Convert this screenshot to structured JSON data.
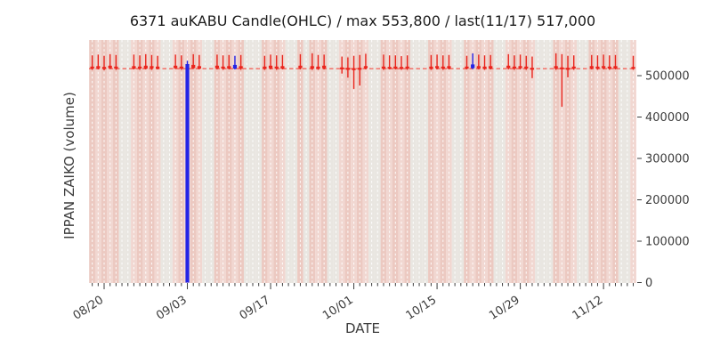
{
  "title": "6371 auKABU Candle(OHLC) / max 553,800 / last(11/17) 517,000",
  "chart_data": {
    "type": "candlestick-ohlc",
    "title": "6371 auKABU Candle(OHLC) / max 553,800 / last(11/17) 517,000",
    "xlabel": "DATE",
    "ylabel": "IPPAN ZAIKO (volume)",
    "ylim": [
      0,
      560000
    ],
    "y_ticks": [
      0,
      100000,
      200000,
      300000,
      400000,
      500000
    ],
    "x_major_ticks": [
      "08/20",
      "09/03",
      "09/17",
      "10/01",
      "10/15",
      "10/29",
      "11/12"
    ],
    "date_range": [
      "08/17",
      "11/18"
    ],
    "max_value": 553800,
    "last_date": "11/17",
    "last_value": 517000,
    "reference_line": 517000,
    "grid": "white dashed vertical line per day",
    "legend_position": "none",
    "non_trading_days": [
      "09/15",
      "09/23",
      "10/13",
      "11/03"
    ],
    "candle_fields": [
      "date",
      "open",
      "high",
      "low",
      "close",
      "color"
    ],
    "candles": [
      [
        "08/18",
        522000,
        549000,
        514000,
        517000,
        "r"
      ],
      [
        "08/19",
        523000,
        551000,
        515000,
        518000,
        "r"
      ],
      [
        "08/20",
        521000,
        548000,
        513000,
        517000,
        "r"
      ],
      [
        "08/21",
        524000,
        552000,
        516000,
        518000,
        "r"
      ],
      [
        "08/22",
        522000,
        550000,
        514000,
        517000,
        "r"
      ],
      [
        "08/25",
        523000,
        551000,
        515000,
        517000,
        "r"
      ],
      [
        "08/26",
        522000,
        549000,
        514000,
        518000,
        "r"
      ],
      [
        "08/27",
        524000,
        552000,
        515000,
        517000,
        "r"
      ],
      [
        "08/28",
        523000,
        550000,
        514000,
        518000,
        "r"
      ],
      [
        "08/29",
        522000,
        548000,
        515000,
        517000,
        "r"
      ],
      [
        "09/01",
        524000,
        551000,
        516000,
        518000,
        "r"
      ],
      [
        "09/02",
        522000,
        549000,
        514000,
        517000,
        "r"
      ],
      [
        "09/03",
        0,
        536000,
        0,
        528000,
        "b"
      ],
      [
        "09/04",
        526000,
        552000,
        516000,
        518000,
        "r"
      ],
      [
        "09/05",
        523000,
        550000,
        515000,
        517000,
        "r"
      ],
      [
        "09/08",
        524000,
        551000,
        515000,
        518000,
        "r"
      ],
      [
        "09/09",
        522000,
        549000,
        514000,
        517000,
        "r"
      ],
      [
        "09/10",
        523000,
        550000,
        515000,
        517000,
        "r"
      ],
      [
        "09/11",
        517000,
        548000,
        515000,
        526000,
        "b"
      ],
      [
        "09/12",
        523000,
        550000,
        514000,
        517000,
        "r"
      ],
      [
        "09/16",
        522000,
        548000,
        514000,
        517000,
        "r"
      ],
      [
        "09/17",
        524000,
        551000,
        515000,
        518000,
        "r"
      ],
      [
        "09/18",
        522000,
        549000,
        514000,
        517000,
        "r"
      ],
      [
        "09/19",
        523000,
        550000,
        515000,
        517000,
        "r"
      ],
      [
        "09/22",
        524000,
        552000,
        515000,
        518000,
        "r"
      ],
      [
        "09/24",
        523000,
        553800,
        514000,
        517000,
        "r"
      ],
      [
        "09/25",
        522000,
        550000,
        514000,
        517000,
        "r"
      ],
      [
        "09/26",
        524000,
        551000,
        515000,
        518000,
        "r"
      ],
      [
        "09/29",
        520000,
        546000,
        505000,
        515000,
        "r"
      ],
      [
        "09/30",
        519000,
        544000,
        495000,
        514000,
        "r"
      ],
      [
        "10/01",
        518000,
        548000,
        468000,
        515000,
        "r"
      ],
      [
        "10/02",
        519000,
        550000,
        476000,
        516000,
        "r"
      ],
      [
        "10/03",
        523000,
        553000,
        515000,
        518000,
        "r"
      ],
      [
        "10/06",
        522000,
        551000,
        514000,
        517000,
        "r"
      ],
      [
        "10/07",
        521000,
        549000,
        515000,
        517000,
        "r"
      ],
      [
        "10/08",
        522000,
        549000,
        515000,
        517000,
        "r"
      ],
      [
        "10/09",
        521000,
        547000,
        514000,
        517000,
        "r"
      ],
      [
        "10/10",
        522000,
        549000,
        514000,
        517000,
        "r"
      ],
      [
        "10/14",
        522000,
        550000,
        514000,
        517000,
        "r"
      ],
      [
        "10/15",
        523000,
        551000,
        515000,
        518000,
        "r"
      ],
      [
        "10/16",
        522000,
        549000,
        514000,
        517000,
        "r"
      ],
      [
        "10/17",
        523000,
        550000,
        515000,
        517000,
        "r"
      ],
      [
        "10/20",
        522000,
        548000,
        515000,
        517000,
        "r"
      ],
      [
        "10/21",
        518000,
        553800,
        516000,
        527000,
        "b"
      ],
      [
        "10/22",
        523000,
        551000,
        515000,
        518000,
        "r"
      ],
      [
        "10/23",
        522000,
        549000,
        514000,
        517000,
        "r"
      ],
      [
        "10/24",
        523000,
        550000,
        515000,
        517000,
        "r"
      ],
      [
        "10/27",
        524000,
        552000,
        515000,
        518000,
        "r"
      ],
      [
        "10/28",
        522000,
        549000,
        514000,
        517000,
        "r"
      ],
      [
        "10/29",
        523000,
        551000,
        515000,
        518000,
        "r"
      ],
      [
        "10/30",
        522000,
        548000,
        514000,
        517000,
        "r"
      ],
      [
        "10/31",
        519000,
        546000,
        494000,
        515000,
        "r"
      ],
      [
        "11/04",
        523000,
        553800,
        514000,
        517000,
        "r"
      ],
      [
        "11/05",
        520000,
        552000,
        425000,
        516000,
        "r"
      ],
      [
        "11/06",
        519000,
        548000,
        496000,
        515000,
        "r"
      ],
      [
        "11/07",
        522000,
        549000,
        514000,
        517000,
        "r"
      ],
      [
        "11/10",
        523000,
        550000,
        515000,
        518000,
        "r"
      ],
      [
        "11/11",
        522000,
        549000,
        514000,
        517000,
        "r"
      ],
      [
        "11/12",
        523000,
        551000,
        515000,
        518000,
        "r"
      ],
      [
        "11/13",
        522000,
        549000,
        514000,
        517000,
        "r"
      ],
      [
        "11/14",
        523000,
        550000,
        515000,
        517000,
        "r"
      ],
      [
        "11/17",
        521000,
        548000,
        514000,
        517000,
        "r"
      ]
    ],
    "colors": {
      "candle_down_red": "#ea241c",
      "candle_up_blue": "#2424e6",
      "reference_line_red": "#f2564c",
      "weekday_band_light": "#f1d7d1",
      "weekday_band_dark": "#ecc9c1",
      "non_trading_band_gray": "#e9e6e1",
      "day_gridline_white": "rgba(255,255,255,0.85)",
      "tick_text": "#3c3c3c",
      "title_text": "#1c1c1c",
      "figure_background": "#ffffff"
    }
  }
}
